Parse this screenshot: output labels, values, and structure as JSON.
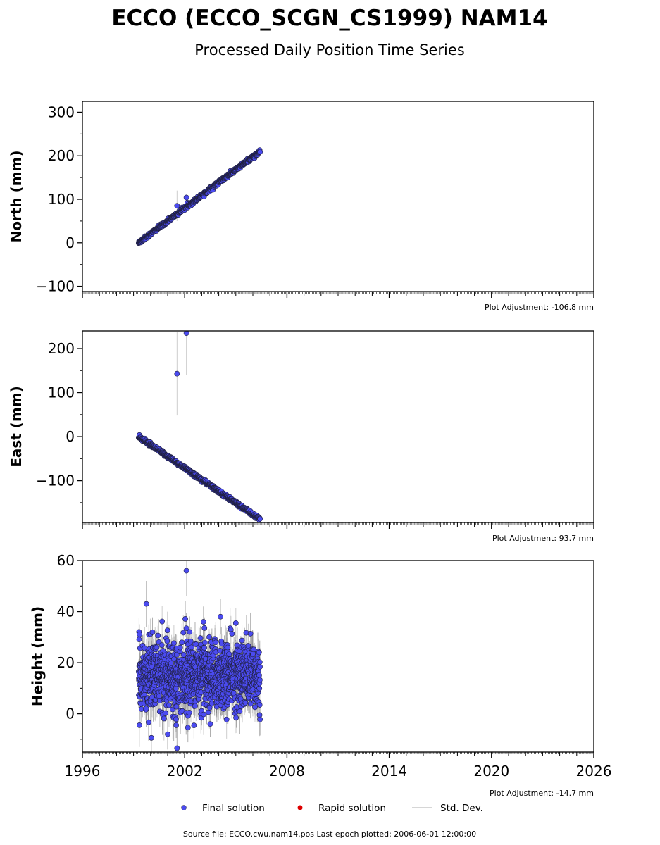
{
  "figure": {
    "title": "ECCO (ECCO_SCGN_CS1999) NAM14",
    "subtitle": "Processed Daily Position Time Series",
    "source_note": "Source file: ECCO.cwu.nam14.pos  Last epoch plotted: 2006-06-01 12:00:00"
  },
  "legend": {
    "final": "Final solution",
    "rapid": "Rapid solution",
    "std": "Std. Dev."
  },
  "colors": {
    "final_fill": "#4b4bf0",
    "final_edge": "#202040",
    "rapid": "#dd0000",
    "std_line": "#c8c8c8",
    "std_dark": "#7a7a7a"
  },
  "chart_data": [
    {
      "type": "scatter",
      "panel": "north",
      "ylabel": "North (mm)",
      "adjustment": "Plot Adjustment: -106.8 mm",
      "xlim": [
        1996,
        2026
      ],
      "ylim": [
        -112,
        325
      ],
      "yticks": [
        -100,
        0,
        100,
        200,
        300
      ],
      "trend": {
        "x_start": 1999.3,
        "x_end": 2006.42,
        "y_start": 0,
        "y_end": 210,
        "scatter": 2
      },
      "outliers": [
        {
          "x": 2002.1,
          "y": 104,
          "err": 8
        },
        {
          "x": 2001.55,
          "y": 85,
          "err": 35
        }
      ],
      "series": [
        {
          "name": "Final solution",
          "x_start": 1999.3,
          "x_end": 2006.42
        }
      ]
    },
    {
      "type": "scatter",
      "panel": "east",
      "ylabel": "East (mm)",
      "adjustment": "Plot Adjustment: 93.7 mm",
      "xlim": [
        1996,
        2026
      ],
      "ylim": [
        -195,
        240
      ],
      "yticks": [
        -100,
        0,
        100,
        200
      ],
      "trend": {
        "x_start": 1999.3,
        "x_end": 2006.42,
        "y_start": 0,
        "y_end": -188,
        "scatter": 2
      },
      "outliers": [
        {
          "x": 2001.55,
          "y": 143,
          "err": 95
        },
        {
          "x": 2002.1,
          "y": 235,
          "err": 95
        }
      ],
      "series": [
        {
          "name": "Final solution",
          "x_start": 1999.3,
          "x_end": 2006.42
        }
      ]
    },
    {
      "type": "scatter",
      "panel": "height",
      "ylabel": "Height (mm)",
      "adjustment": "Plot Adjustment: -14.7 mm",
      "xlim": [
        1996,
        2026
      ],
      "ylim": [
        -15,
        60
      ],
      "yticks": [
        0,
        20,
        40,
        60
      ],
      "xticks": [
        1996,
        2002,
        2008,
        2014,
        2020,
        2026
      ],
      "trend": {
        "x_start": 1999.3,
        "x_end": 2006.42,
        "mean": 15,
        "scatter": 6.5
      },
      "outliers": [
        {
          "x": 1999.75,
          "y": 43,
          "err": 9
        },
        {
          "x": 2002.1,
          "y": 56,
          "err": 10
        },
        {
          "x": 2001.55,
          "y": -13.5,
          "err": 12
        },
        {
          "x": 2001.0,
          "y": -8,
          "err": 6
        },
        {
          "x": 2004.1,
          "y": 38,
          "err": 7
        },
        {
          "x": 2003.1,
          "y": 36,
          "err": 6
        },
        {
          "x": 2002.1,
          "y": 33.5,
          "err": 6
        },
        {
          "x": 2005.0,
          "y": 35.5,
          "err": 6
        },
        {
          "x": 2001.5,
          "y": -4.5,
          "err": 5
        },
        {
          "x": 2003.5,
          "y": -4,
          "err": 5
        }
      ],
      "series": [
        {
          "name": "Final solution",
          "x_start": 1999.3,
          "x_end": 2006.42
        }
      ]
    }
  ]
}
